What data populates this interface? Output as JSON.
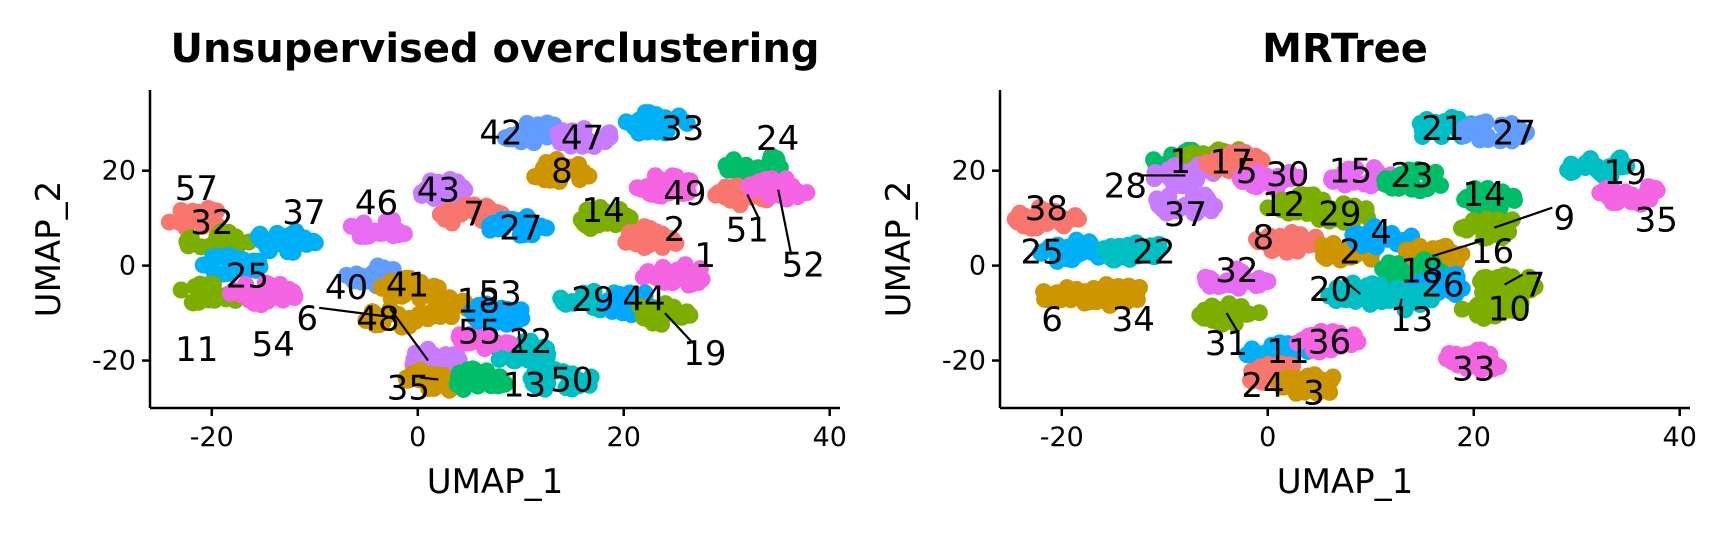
{
  "chart_data": [
    {
      "type": "scatter",
      "title": "Unsupervised overclustering",
      "xlabel": "UMAP_1",
      "ylabel": "UMAP_2",
      "xlim": [
        -26,
        41
      ],
      "ylim": [
        -30,
        37
      ],
      "xticks": [
        -20,
        0,
        20,
        40
      ],
      "yticks": [
        -20,
        0,
        20
      ],
      "xtick_labels": [
        "-20",
        "0",
        "20",
        "40"
      ],
      "ytick_labels": [
        "-20",
        "0",
        "20"
      ],
      "grid": false,
      "legend": "none",
      "clusters": [
        {
          "id": "57",
          "x": -21.5,
          "y": 10,
          "color": "#F8766D"
        },
        {
          "id": "32",
          "x": -19.5,
          "y": 5,
          "color": "#7CAE00"
        },
        {
          "id": "25",
          "x": -18,
          "y": 0,
          "color": "#00B0F6"
        },
        {
          "id": "11",
          "x": -20,
          "y": -6,
          "color": "#7CAE00"
        },
        {
          "id": "54",
          "x": -15,
          "y": -6,
          "color": "#F564E3"
        },
        {
          "id": "37",
          "x": -13,
          "y": 5,
          "color": "#00B0F6"
        },
        {
          "id": "40",
          "x": -4,
          "y": -2,
          "color": "#619CFF"
        },
        {
          "id": "46",
          "x": -4,
          "y": 8,
          "color": "#E76BF3"
        },
        {
          "id": "41",
          "x": -1,
          "y": -5,
          "color": "#CD9600"
        },
        {
          "id": "6",
          "x": -2,
          "y": -11,
          "color": "#CD9600"
        },
        {
          "id": "18",
          "x": 2,
          "y": -9,
          "color": "#CD9600"
        },
        {
          "id": "48",
          "x": 1,
          "y": -20,
          "color": "#C77CFF"
        },
        {
          "id": "35",
          "x": 2,
          "y": -24,
          "color": "#CD9600"
        },
        {
          "id": "13",
          "x": 6,
          "y": -24,
          "color": "#00BE67"
        },
        {
          "id": "22",
          "x": 10,
          "y": -18,
          "color": "#00BFC4"
        },
        {
          "id": "55",
          "x": 6,
          "y": -16,
          "color": "#F564E3"
        },
        {
          "id": "53",
          "x": 8,
          "y": -10,
          "color": "#00A9FF"
        },
        {
          "id": "50",
          "x": 14,
          "y": -24,
          "color": "#00BFC4"
        },
        {
          "id": "43",
          "x": 2,
          "y": 16,
          "color": "#C77CFF"
        },
        {
          "id": "7",
          "x": 5,
          "y": 11,
          "color": "#F8766D"
        },
        {
          "id": "27",
          "x": 10,
          "y": 8,
          "color": "#00A9FF"
        },
        {
          "id": "42",
          "x": 11,
          "y": 28,
          "color": "#619CFF"
        },
        {
          "id": "47",
          "x": 16,
          "y": 27,
          "color": "#C77CFF"
        },
        {
          "id": "33",
          "x": 23,
          "y": 30,
          "color": "#00B0F6"
        },
        {
          "id": "8",
          "x": 14,
          "y": 20,
          "color": "#CD9600"
        },
        {
          "id": "49",
          "x": 24,
          "y": 17,
          "color": "#F564E3"
        },
        {
          "id": "14",
          "x": 18,
          "y": 10,
          "color": "#7CAE00"
        },
        {
          "id": "2",
          "x": 23,
          "y": 6,
          "color": "#F8766D"
        },
        {
          "id": "1",
          "x": 25,
          "y": -2,
          "color": "#F564E3"
        },
        {
          "id": "29",
          "x": 17,
          "y": -7,
          "color": "#00BFC4"
        },
        {
          "id": "44",
          "x": 21,
          "y": -8,
          "color": "#00A9FF"
        },
        {
          "id": "19",
          "x": 24,
          "y": -10,
          "color": "#7CAE00"
        },
        {
          "id": "24",
          "x": 33,
          "y": 21,
          "color": "#00BE67"
        },
        {
          "id": "51",
          "x": 32,
          "y": 15,
          "color": "#F8766D"
        },
        {
          "id": "52",
          "x": 35,
          "y": 16,
          "color": "#F564E3"
        }
      ]
    },
    {
      "type": "scatter",
      "title": "MRTree",
      "xlabel": "UMAP_1",
      "ylabel": "UMAP_2",
      "xlim": [
        -26,
        41
      ],
      "ylim": [
        -30,
        37
      ],
      "xticks": [
        -20,
        0,
        20,
        40
      ],
      "yticks": [
        -20,
        0,
        20
      ],
      "xtick_labels": [
        "-20",
        "0",
        "20",
        "40"
      ],
      "ytick_labels": [
        "-20",
        "0",
        "20"
      ],
      "grid": false,
      "legend": "none",
      "clusters": [
        {
          "id": "38",
          "x": -21.5,
          "y": 10,
          "color": "#F8766D"
        },
        {
          "id": "25",
          "x": -19,
          "y": 3,
          "color": "#00B0F6"
        },
        {
          "id": "6",
          "x": -19,
          "y": -6,
          "color": "#CD9600"
        },
        {
          "id": "34",
          "x": -15,
          "y": -6,
          "color": "#CD9600"
        },
        {
          "id": "22",
          "x": -13,
          "y": 3,
          "color": "#00BFC4"
        },
        {
          "id": "1",
          "x": -8,
          "y": 22,
          "color": "#00BE67"
        },
        {
          "id": "17",
          "x": -5,
          "y": 23,
          "color": "#7CAE00"
        },
        {
          "id": "28",
          "x": -8,
          "y": 19,
          "color": "#C77CFF"
        },
        {
          "id": "5",
          "x": -3,
          "y": 22,
          "color": "#F8766D"
        },
        {
          "id": "37",
          "x": -8,
          "y": 13,
          "color": "#C77CFF"
        },
        {
          "id": "30",
          "x": 0,
          "y": 18,
          "color": "#E76BF3"
        },
        {
          "id": "15",
          "x": 9,
          "y": 19,
          "color": "#E76BF3"
        },
        {
          "id": "21",
          "x": 17,
          "y": 29,
          "color": "#00BFC4"
        },
        {
          "id": "27",
          "x": 22,
          "y": 28,
          "color": "#619CFF"
        },
        {
          "id": "19",
          "x": 32,
          "y": 21,
          "color": "#00BFC4"
        },
        {
          "id": "35",
          "x": 35,
          "y": 15,
          "color": "#F564E3"
        },
        {
          "id": "12",
          "x": 3,
          "y": 13,
          "color": "#7CAE00"
        },
        {
          "id": "29",
          "x": 7,
          "y": 11,
          "color": "#7CAE00"
        },
        {
          "id": "23",
          "x": 14,
          "y": 18,
          "color": "#00BE67"
        },
        {
          "id": "14",
          "x": 21,
          "y": 14,
          "color": "#00BE67"
        },
        {
          "id": "9",
          "x": 22,
          "y": 8,
          "color": "#7CAE00"
        },
        {
          "id": "8",
          "x": 2,
          "y": 5,
          "color": "#F8766D"
        },
        {
          "id": "2",
          "x": 8,
          "y": 3,
          "color": "#CD9600"
        },
        {
          "id": "4",
          "x": 11,
          "y": 6,
          "color": "#00A9FF"
        },
        {
          "id": "16",
          "x": 16,
          "y": 2,
          "color": "#CD9600"
        },
        {
          "id": "18",
          "x": 14,
          "y": -1,
          "color": "#00BE67"
        },
        {
          "id": "26",
          "x": 17,
          "y": -4,
          "color": "#00A9FF"
        },
        {
          "id": "7",
          "x": 23,
          "y": -4,
          "color": "#7CAE00"
        },
        {
          "id": "10",
          "x": 22,
          "y": -9,
          "color": "#7CAE00"
        },
        {
          "id": "13",
          "x": 13,
          "y": -7,
          "color": "#00BFC4"
        },
        {
          "id": "20",
          "x": 9,
          "y": -6,
          "color": "#00BFC4"
        },
        {
          "id": "32",
          "x": -3,
          "y": -3,
          "color": "#E76BF3"
        },
        {
          "id": "31",
          "x": -4,
          "y": -10,
          "color": "#7CAE00"
        },
        {
          "id": "11",
          "x": 1,
          "y": -18,
          "color": "#00B0F6"
        },
        {
          "id": "36",
          "x": 6,
          "y": -16,
          "color": "#F564E3"
        },
        {
          "id": "24",
          "x": 1,
          "y": -23,
          "color": "#F8766D"
        },
        {
          "id": "3",
          "x": 4,
          "y": -25,
          "color": "#CD9600"
        },
        {
          "id": "33",
          "x": 20,
          "y": -20,
          "color": "#F564E3"
        }
      ]
    }
  ]
}
